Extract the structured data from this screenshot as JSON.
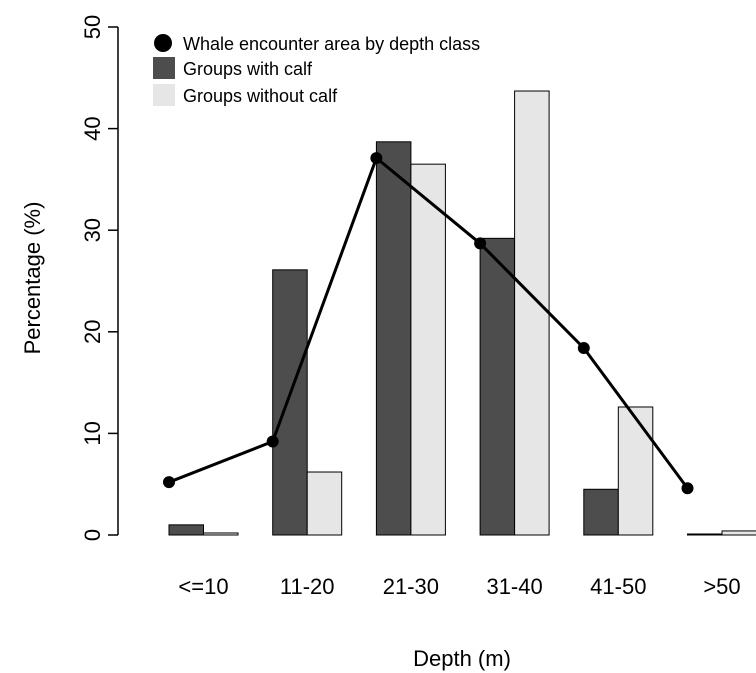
{
  "chart_data": {
    "type": "bar",
    "title": "",
    "xlabel": "Depth (m)",
    "ylabel": "Percentage (%)",
    "categories": [
      "<=10",
      "11-20",
      "21-30",
      "31-40",
      "41-50",
      ">50"
    ],
    "ylim": [
      0,
      50
    ],
    "yticks": [
      0,
      10,
      20,
      30,
      40,
      50
    ],
    "grid": false,
    "legend_position": "top-left",
    "series": [
      {
        "name": "Groups with calf",
        "kind": "bar",
        "color": "#4d4d4d",
        "values": [
          1.0,
          26.1,
          38.7,
          29.2,
          4.5,
          0.1
        ]
      },
      {
        "name": "Groups without calf",
        "kind": "bar",
        "color": "#e6e6e6",
        "values": [
          0.2,
          6.2,
          36.5,
          43.7,
          12.6,
          0.4
        ]
      },
      {
        "name": "Whale encounter area by depth class",
        "kind": "line",
        "color": "#000000",
        "values": [
          5.2,
          9.2,
          37.1,
          28.7,
          18.4,
          4.6
        ]
      }
    ]
  }
}
